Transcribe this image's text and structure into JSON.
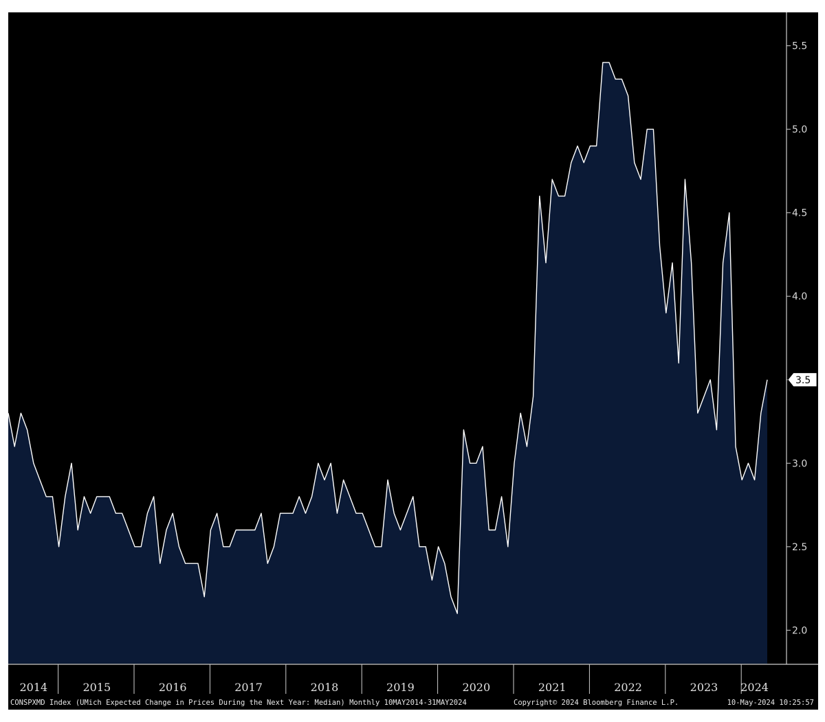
{
  "chart_data": {
    "type": "area",
    "x_start": "2014-05",
    "frequency": "monthly",
    "values": [
      3.3,
      3.1,
      3.3,
      3.2,
      3.0,
      2.9,
      2.8,
      2.8,
      2.5,
      2.8,
      3.0,
      2.6,
      2.8,
      2.7,
      2.8,
      2.8,
      2.8,
      2.7,
      2.7,
      2.6,
      2.5,
      2.5,
      2.7,
      2.8,
      2.4,
      2.6,
      2.7,
      2.5,
      2.4,
      2.4,
      2.4,
      2.2,
      2.6,
      2.7,
      2.5,
      2.5,
      2.6,
      2.6,
      2.6,
      2.6,
      2.7,
      2.4,
      2.5,
      2.7,
      2.7,
      2.7,
      2.8,
      2.7,
      2.8,
      3.0,
      2.9,
      3.0,
      2.7,
      2.9,
      2.8,
      2.7,
      2.7,
      2.6,
      2.5,
      2.5,
      2.9,
      2.7,
      2.6,
      2.7,
      2.8,
      2.5,
      2.5,
      2.3,
      2.5,
      2.4,
      2.2,
      2.1,
      3.2,
      3.0,
      3.0,
      3.1,
      2.6,
      2.6,
      2.8,
      2.5,
      3.0,
      3.3,
      3.1,
      3.4,
      4.6,
      4.2,
      4.7,
      4.6,
      4.6,
      4.8,
      4.9,
      4.8,
      4.9,
      4.9,
      5.4,
      5.4,
      5.3,
      5.3,
      5.2,
      4.8,
      4.7,
      5.0,
      5.0,
      4.3,
      3.9,
      4.2,
      3.6,
      4.7,
      4.2,
      3.3,
      3.4,
      3.5,
      3.2,
      4.2,
      4.5,
      3.1,
      2.9,
      3.0,
      2.9,
      3.3,
      3.5
    ],
    "yticks": [
      "2.0",
      "2.5",
      "3.0",
      "3.5",
      "4.0",
      "4.5",
      "5.0",
      "5.5"
    ],
    "xticks": [
      "2014",
      "2015",
      "2016",
      "2017",
      "2018",
      "2019",
      "2020",
      "2021",
      "2022",
      "2023",
      "2024"
    ],
    "ylim": [
      1.8,
      5.7
    ],
    "last_value_label": "3.5",
    "grid": false,
    "colors": {
      "background": "#000000",
      "fill": "#0b1a36",
      "line": "#ffffff",
      "axis": "#cfcfcf",
      "text": "#e0e0e0"
    }
  },
  "footer": {
    "left": "CONSPXMD Index (UMich Expected Change in Prices During the Next Year: Median) Monthly 10MAY2014-31MAY2024",
    "center": "Copyright© 2024 Bloomberg Finance L.P.",
    "right": "10-May-2024 10:25:57"
  }
}
